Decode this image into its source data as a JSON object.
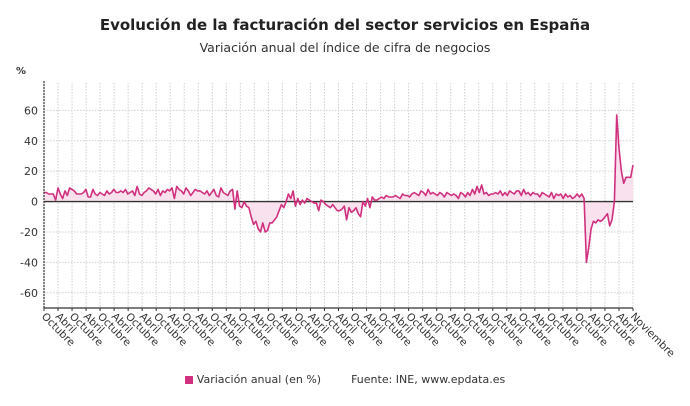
{
  "title": "Evolución de la facturación del sector servicios en España",
  "subtitle": "Variación anual del índice de cifra de negocios",
  "legend": {
    "series_label": "Variación anual (en %)",
    "source": "Fuente: INE, www.epdata.es"
  },
  "colors": {
    "line": "#d0307e",
    "fill": "#f9e2ee",
    "zero_line": "#333333",
    "grid": "#cfcfcf"
  },
  "chart_data": {
    "type": "area",
    "title": "Evolución de la facturación del sector servicios en España",
    "subtitle": "Variación anual del índice de cifra de negocios",
    "ylabel": "%",
    "ylim": [
      -70,
      78
    ],
    "yticks": [
      60,
      40,
      20,
      0,
      -20,
      -40,
      -60
    ],
    "grid": true,
    "legend_position": "bottom",
    "xtick_labels": [
      "Octubre",
      "Abril",
      "Octubre",
      "Abril",
      "Octubre",
      "Abril",
      "Octubre",
      "Abril",
      "Octubre",
      "Abril",
      "Octubre",
      "Abril",
      "Octubre",
      "Abril",
      "Octubre",
      "Abril",
      "Octubre",
      "Abril",
      "Octubre",
      "Abril",
      "Octubre",
      "Abril",
      "Octubre",
      "Abril",
      "Octubre",
      "Abril",
      "Octubre",
      "Abril",
      "Octubre",
      "Abril",
      "Octubre",
      "Abril",
      "Octubre",
      "Abril",
      "Octubre",
      "Abril",
      "Octubre",
      "Abril",
      "Octubre",
      "Abril",
      "Octubre",
      "Abril",
      "Noviembre"
    ],
    "series": [
      {
        "name": "Variación anual (en %)",
        "values": [
          6,
          6,
          5,
          5,
          5,
          1,
          9,
          5,
          2,
          7,
          4,
          9,
          8,
          7,
          5,
          5,
          5,
          6,
          8,
          3,
          3,
          8,
          5,
          4,
          6,
          5,
          4,
          7,
          5,
          6,
          8,
          6,
          6,
          7,
          6,
          8,
          5,
          6,
          7,
          4,
          10,
          5,
          4,
          6,
          7,
          9,
          8,
          7,
          5,
          8,
          4,
          7,
          6,
          8,
          7,
          9,
          2,
          10,
          8,
          7,
          5,
          9,
          7,
          4,
          6,
          8,
          7,
          7,
          6,
          5,
          7,
          4,
          6,
          8,
          4,
          3,
          9,
          6,
          5,
          4,
          7,
          8,
          -5,
          7,
          -3,
          -4,
          0,
          -3,
          -4,
          -10,
          -15,
          -13,
          -18,
          -20,
          -14,
          -20,
          -19,
          -14,
          -14,
          -12,
          -10,
          -6,
          -2,
          -4,
          0,
          5,
          2,
          7,
          -3,
          2,
          -2,
          1,
          -1,
          2,
          1,
          0,
          -1,
          -1,
          -6,
          1,
          0,
          -2,
          -3,
          -4,
          -2,
          -4,
          -6,
          -6,
          -5,
          -3,
          -12,
          -4,
          -7,
          -6,
          -4,
          -8,
          -10,
          0,
          -3,
          2,
          -4,
          3,
          1,
          1,
          2,
          3,
          2,
          4,
          3,
          3,
          3,
          4,
          3,
          2,
          5,
          4,
          4,
          3,
          5,
          6,
          5,
          4,
          7,
          6,
          4,
          8,
          5,
          6,
          5,
          4,
          6,
          5,
          3,
          6,
          5,
          4,
          5,
          4,
          2,
          6,
          5,
          3,
          6,
          4,
          8,
          5,
          10,
          6,
          11,
          5,
          6,
          4,
          5,
          5,
          6,
          5,
          7,
          4,
          6,
          4,
          7,
          6,
          5,
          7,
          7,
          4,
          8,
          5,
          6,
          4,
          6,
          5,
          5,
          3,
          6,
          5,
          4,
          3,
          6,
          2,
          5,
          4,
          5,
          2,
          5,
          3,
          4,
          2,
          3,
          5,
          3,
          5,
          2,
          -40,
          -30,
          -18,
          -13,
          -14,
          -12,
          -13,
          -12,
          -10,
          -8,
          -16,
          -12,
          0,
          57,
          35,
          20,
          12,
          16,
          16,
          16,
          24
        ]
      }
    ]
  }
}
